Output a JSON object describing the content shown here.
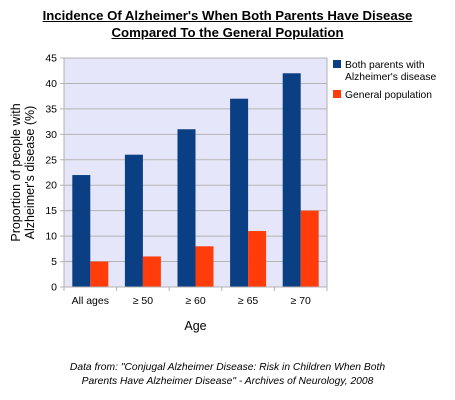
{
  "chart_data": {
    "type": "bar",
    "title_lines": [
      "Incidence Of Alzheimer's When Both Parents Have Disease",
      "Compared To the General Population"
    ],
    "xlabel": "Age",
    "ylabel_lines": [
      "Proportion of people with",
      "Alzheimer's disease (%)"
    ],
    "categories": [
      "All ages",
      "≥ 50",
      "≥ 60",
      "≥ 65",
      "≥ 70"
    ],
    "series": [
      {
        "name_lines": [
          "Both parents with",
          "Alzheimer's disease"
        ],
        "color": "#0b3f83",
        "values": [
          22,
          26,
          31,
          37,
          42
        ]
      },
      {
        "name_lines": [
          "General population"
        ],
        "color": "#ff3c0a",
        "values": [
          5,
          6,
          8,
          11,
          15
        ]
      }
    ],
    "ylim": [
      0,
      45
    ],
    "yticks": [
      "0",
      "5",
      "10",
      "15",
      "20",
      "25",
      "30",
      "35",
      "40",
      "45"
    ],
    "grid": true,
    "plot_background": "#e6e6fa",
    "legend_position": "right"
  },
  "footnote_lines": [
    "Data from: \"Conjugal Alzheimer Disease: Risk in Children When Both",
    "Parents Have Alzheimer Disease\" - Archives of Neurology, 2008"
  ]
}
